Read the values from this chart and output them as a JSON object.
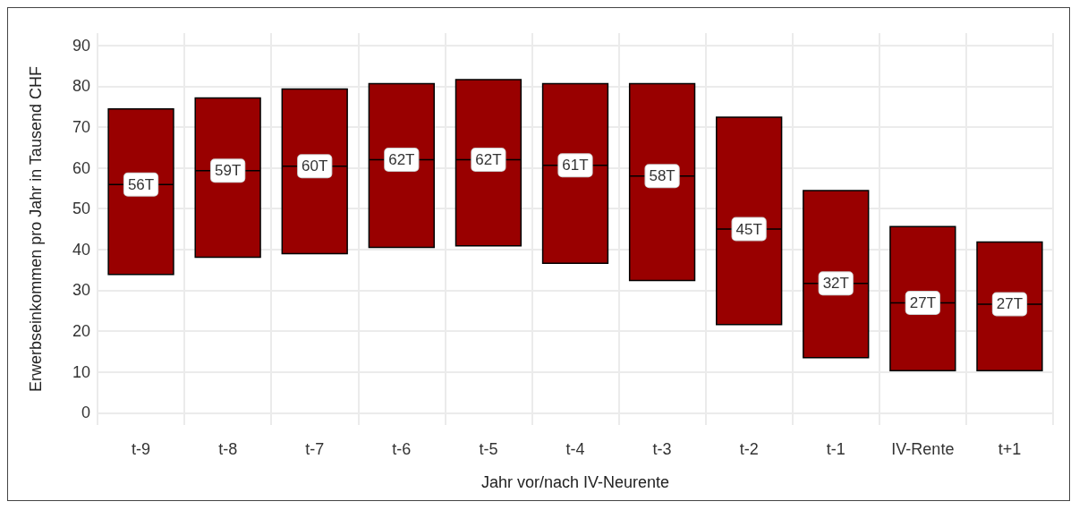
{
  "chart_data": {
    "type": "box",
    "xlabel": "Jahr vor/nach IV-Neurente",
    "ylabel": "Erwerbseinkommen pro Jahr in Tausend CHF",
    "categories": [
      "t-9",
      "t-8",
      "t-7",
      "t-6",
      "t-5",
      "t-4",
      "t-3",
      "t-2",
      "t-1",
      "IV-Rente",
      "t+1"
    ],
    "color": "#990000",
    "boxes": [
      {
        "low": 33.9,
        "q1": 33.9,
        "median": 55.9,
        "q3": 74.4,
        "high": 74.4
      },
      {
        "low": 38.1,
        "q1": 38.1,
        "median": 59.3,
        "q3": 77.1,
        "high": 77.1
      },
      {
        "low": 39.0,
        "q1": 39.0,
        "median": 60.4,
        "q3": 79.3,
        "high": 79.3
      },
      {
        "low": 40.5,
        "q1": 40.5,
        "median": 62.0,
        "q3": 80.6,
        "high": 80.6
      },
      {
        "low": 40.9,
        "q1": 40.9,
        "median": 62.0,
        "q3": 81.6,
        "high": 81.6
      },
      {
        "low": 36.6,
        "q1": 36.6,
        "median": 60.6,
        "q3": 80.6,
        "high": 80.6
      },
      {
        "low": 32.4,
        "q1": 32.4,
        "median": 58.0,
        "q3": 80.6,
        "high": 80.6
      },
      {
        "low": 21.6,
        "q1": 21.6,
        "median": 45.0,
        "q3": 72.4,
        "high": 72.4
      },
      {
        "low": 13.5,
        "q1": 13.5,
        "median": 31.7,
        "q3": 54.4,
        "high": 54.4
      },
      {
        "low": 10.3,
        "q1": 10.3,
        "median": 26.9,
        "q3": 45.6,
        "high": 45.6
      },
      {
        "low": 10.3,
        "q1": 10.3,
        "median": 26.6,
        "q3": 41.8,
        "high": 41.8
      }
    ],
    "annotations": [
      {
        "text": "56T",
        "x": "t-9",
        "y": 55.9
      },
      {
        "text": "59T",
        "x": "t-8",
        "y": 59.3
      },
      {
        "text": "60T",
        "x": "t-7",
        "y": 60.4
      },
      {
        "text": "62T",
        "x": "t-6",
        "y": 62.0
      },
      {
        "text": "62T",
        "x": "t-5",
        "y": 62.0
      },
      {
        "text": "61T",
        "x": "t-4",
        "y": 60.6
      },
      {
        "text": "58T",
        "x": "t-3",
        "y": 58.0
      },
      {
        "text": "45T",
        "x": "t-2",
        "y": 45.0
      },
      {
        "text": "32T",
        "x": "t-1",
        "y": 31.7
      },
      {
        "text": "27T",
        "x": "IV-Rente",
        "y": 26.9
      },
      {
        "text": "27T",
        "x": "t+1",
        "y": 26.6
      }
    ],
    "ylim": [
      -3,
      93
    ],
    "yticks": [
      0,
      10,
      20,
      30,
      40,
      50,
      60,
      70,
      80,
      90
    ],
    "grid": true
  }
}
